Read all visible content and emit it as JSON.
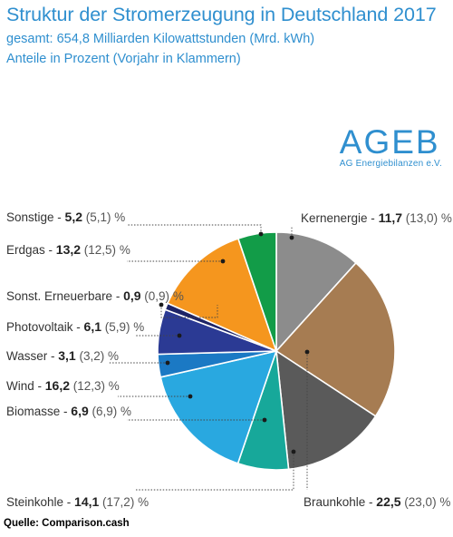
{
  "chart_data": {
    "type": "pie",
    "title": "Struktur der Stromerzeugung in Deutschland 2017",
    "subtitle": "gesamt: 654,8 Milliarden Kilowattstunden (Mrd. kWh)",
    "subtitle2": "Anteile in Prozent (Vorjahr in Klammern)",
    "unit": "%",
    "slices": [
      {
        "name": "Kernenergie",
        "value_label": "11,7",
        "prev_label": "(13,0)",
        "value": 11.7,
        "prev": 13.0,
        "color": "#8c8c8c"
      },
      {
        "name": "Braunkohle",
        "value_label": "22,5",
        "prev_label": "(23,0)",
        "value": 22.5,
        "prev": 23.0,
        "color": "#a67c52"
      },
      {
        "name": "Steinkohle",
        "value_label": "14,1",
        "prev_label": "(17,2)",
        "value": 14.1,
        "prev": 17.2,
        "color": "#5a5a5a"
      },
      {
        "name": "Biomasse",
        "value_label": "6,9",
        "prev_label": "(6,9)",
        "value": 6.9,
        "prev": 6.9,
        "color": "#17a89a"
      },
      {
        "name": "Wind",
        "value_label": "16,2",
        "prev_label": "(12,3)",
        "value": 16.2,
        "prev": 12.3,
        "color": "#29a8e0"
      },
      {
        "name": "Wasser",
        "value_label": "3,1",
        "prev_label": "(3,2)",
        "value": 3.1,
        "prev": 3.2,
        "color": "#1b79c4"
      },
      {
        "name": "Photovoltaik",
        "value_label": "6,1",
        "prev_label": "(5,9)",
        "value": 6.1,
        "prev": 5.9,
        "color": "#2b3a94"
      },
      {
        "name": "Sonst. Erneuerbare",
        "value_label": "0,9",
        "prev_label": "(0,9)",
        "value": 0.9,
        "prev": 0.9,
        "color": "#1e2466"
      },
      {
        "name": "Erdgas",
        "value_label": "13,2",
        "prev_label": "(12,5)",
        "value": 13.2,
        "prev": 12.5,
        "color": "#f5961e"
      },
      {
        "name": "Sonstige",
        "value_label": "5,2",
        "prev_label": "(5,1)",
        "value": 5.2,
        "prev": 5.1,
        "color": "#129c48"
      }
    ]
  },
  "logo": {
    "main": "AGEB",
    "sub": "AG Energiebilanzen e.V."
  },
  "source": "Quelle: Comparison.cash"
}
